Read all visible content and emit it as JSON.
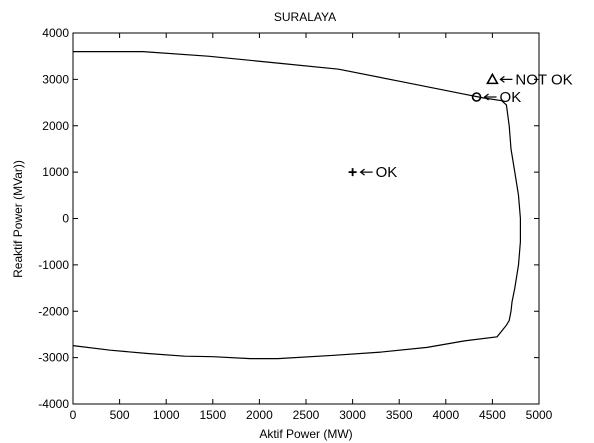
{
  "chart_data": {
    "type": "line",
    "title": "SURALAYA",
    "xlabel": "Aktif Power (MW)",
    "ylabel": "Reaktif Power (MVar))",
    "xlim": [
      0,
      5000
    ],
    "ylim": [
      -4000,
      4000
    ],
    "xticks": [
      0,
      500,
      1000,
      1500,
      2000,
      2500,
      3000,
      3500,
      4000,
      4500,
      5000
    ],
    "yticks": [
      -4000,
      -3000,
      -2000,
      -1000,
      0,
      1000,
      2000,
      3000,
      4000
    ],
    "grid": false,
    "series": [
      {
        "x": [
          0,
          750,
          1450,
          2200,
          2850,
          3500,
          3850,
          4200,
          4400,
          4600,
          4650,
          4680,
          4700,
          4740,
          4780,
          4800,
          4800,
          4780,
          4740,
          4710,
          4700,
          4680,
          4650,
          4550,
          4200,
          3800,
          3300,
          2800,
          2200,
          1900,
          1500,
          1200,
          800,
          400,
          0
        ],
        "y": [
          3600,
          3600,
          3500,
          3350,
          3220,
          2960,
          2820,
          2680,
          2600,
          2540,
          2450,
          2000,
          1500,
          1000,
          500,
          0,
          -500,
          -1000,
          -1500,
          -1800,
          -2000,
          -2200,
          -2300,
          -2550,
          -2640,
          -2780,
          -2880,
          -2950,
          -3020,
          -3020,
          -2980,
          -2970,
          -2910,
          -2840,
          -2740
        ]
      }
    ],
    "annotations": [
      {
        "marker": "triangle",
        "x": 4500,
        "y": 3000,
        "label": "NOT OK"
      },
      {
        "marker": "circle",
        "x": 4330,
        "y": 2620,
        "label": "OK"
      },
      {
        "marker": "plus",
        "x": 3000,
        "y": 1000,
        "label": "OK"
      }
    ]
  }
}
